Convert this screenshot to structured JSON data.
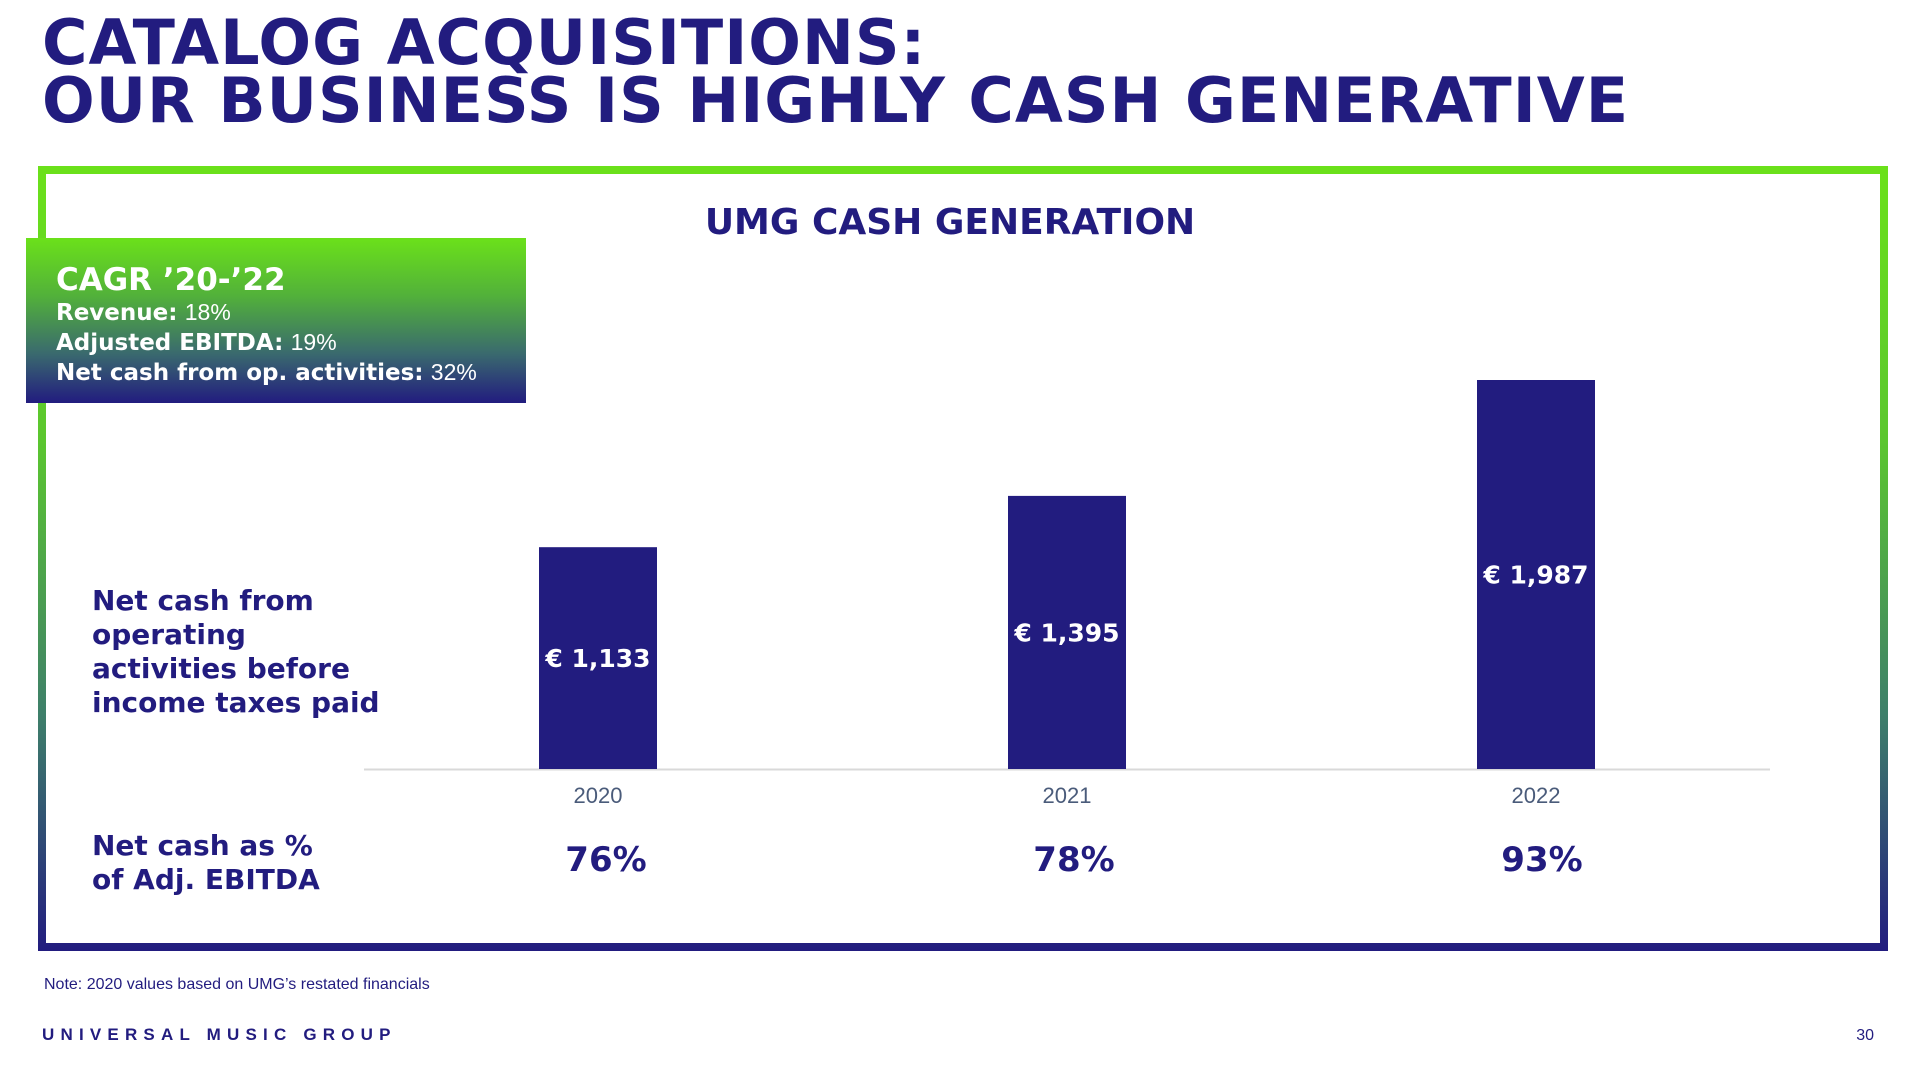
{
  "slide": {
    "title_line1": "CATALOG ACQUISITIONS:",
    "title_line2": "OUR BUSINESS IS HIGHLY CASH GENERATIVE",
    "note": "Note: 2020 values based on UMG’s restated financials",
    "logo_text": "UNIVERSAL MUSIC GROUP",
    "page_number": "30"
  },
  "cagr_box": {
    "title": "CAGR ’20-’22",
    "rows": [
      {
        "label": "Revenue:",
        "value": "18%"
      },
      {
        "label": "Adjusted EBITDA:",
        "value": "19%"
      },
      {
        "label": "Net cash from op. activities:",
        "value": "32%"
      }
    ]
  },
  "labels": {
    "bar_row_line1": "Net cash from",
    "bar_row_line2": "operating",
    "bar_row_line3": "activities before",
    "bar_row_line4": "income taxes paid",
    "pct_row_line1": "Net cash as %",
    "pct_row_line2": "of Adj. EBITDA"
  },
  "chart_data": {
    "type": "bar",
    "title": "UMG CASH GENERATION",
    "categories": [
      "2020",
      "2021",
      "2022"
    ],
    "series": [
      {
        "values": [
          1133,
          1395,
          1987
        ]
      }
    ],
    "data_labels": [
      "€ 1,133",
      "€ 1,395",
      "€ 1,987"
    ],
    "pct_of_adj_ebitda": [
      "76%",
      "78%",
      "93%"
    ],
    "ylim": [
      0,
      2000
    ],
    "grid": false,
    "legend": "none",
    "colors": {
      "bar": "#221C7F",
      "axis": "#D9D9D9",
      "tick_label": "#4A5B7A",
      "data_label": "#FFFFFF"
    }
  },
  "colors": {
    "navy": "#221C7F",
    "green": "#6BE11A"
  }
}
